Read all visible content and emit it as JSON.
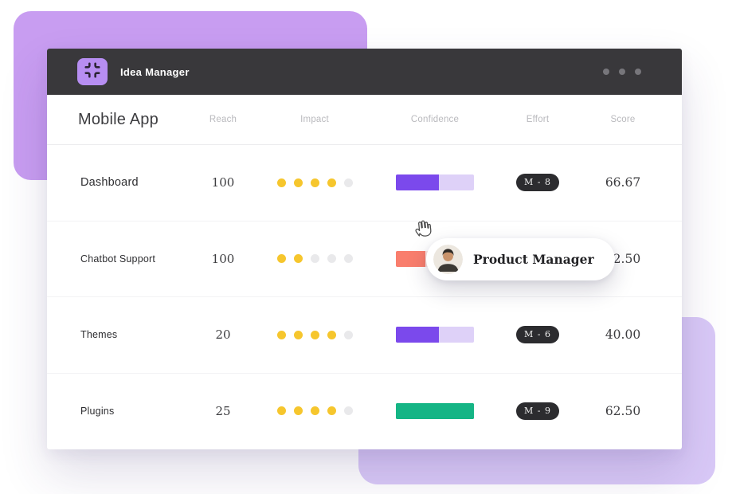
{
  "app": {
    "title": "Idea Manager",
    "icon": "compress-icon",
    "window_menu": "ellipsis-dots"
  },
  "board": {
    "group_title": "Mobile App",
    "columns": [
      "Reach",
      "Impact",
      "Confidence",
      "Effort",
      "Score"
    ],
    "impact_max": 5,
    "rows": [
      {
        "name": "Dashboard",
        "reach": "100",
        "impact": 4,
        "confidence_pct": 55,
        "confidence_fill": "#7b49ec",
        "confidence_track": "#ded1f8",
        "effort": "M - 8",
        "score": "66.67"
      },
      {
        "name": "Chatbot Support",
        "reach": "100",
        "impact": 2,
        "confidence_pct": 38,
        "confidence_fill": "#f97e6d",
        "confidence_track": "#fde5e1",
        "effort": "",
        "score": "12.50"
      },
      {
        "name": "Themes",
        "reach": "20",
        "impact": 4,
        "confidence_pct": 55,
        "confidence_fill": "#7b49ec",
        "confidence_track": "#ded1f8",
        "effort": "M - 6",
        "score": "40.00"
      },
      {
        "name": "Plugins",
        "reach": "25",
        "impact": 4,
        "confidence_pct": 100,
        "confidence_fill": "#15b585",
        "confidence_track": "#15b585",
        "effort": "M - 9",
        "score": "62.50"
      }
    ]
  },
  "tooltip": {
    "label": "Product Manager",
    "avatar": "man-avatar"
  },
  "colors": {
    "titlebar": "#39383b",
    "app_tile_purple": "#b78ef2",
    "bg_shape_top": "#c89df1",
    "bg_shape_bottom": "#d9c9f7",
    "accent_purple": "#7b49ec",
    "purple_track": "#ded1f8",
    "salmon": "#f97e6d",
    "green": "#15b585",
    "impact_dot_filled": "#f6c62d",
    "impact_dot_empty": "#e9e9eb",
    "effort_pill_bg": "#2c2c2f"
  }
}
